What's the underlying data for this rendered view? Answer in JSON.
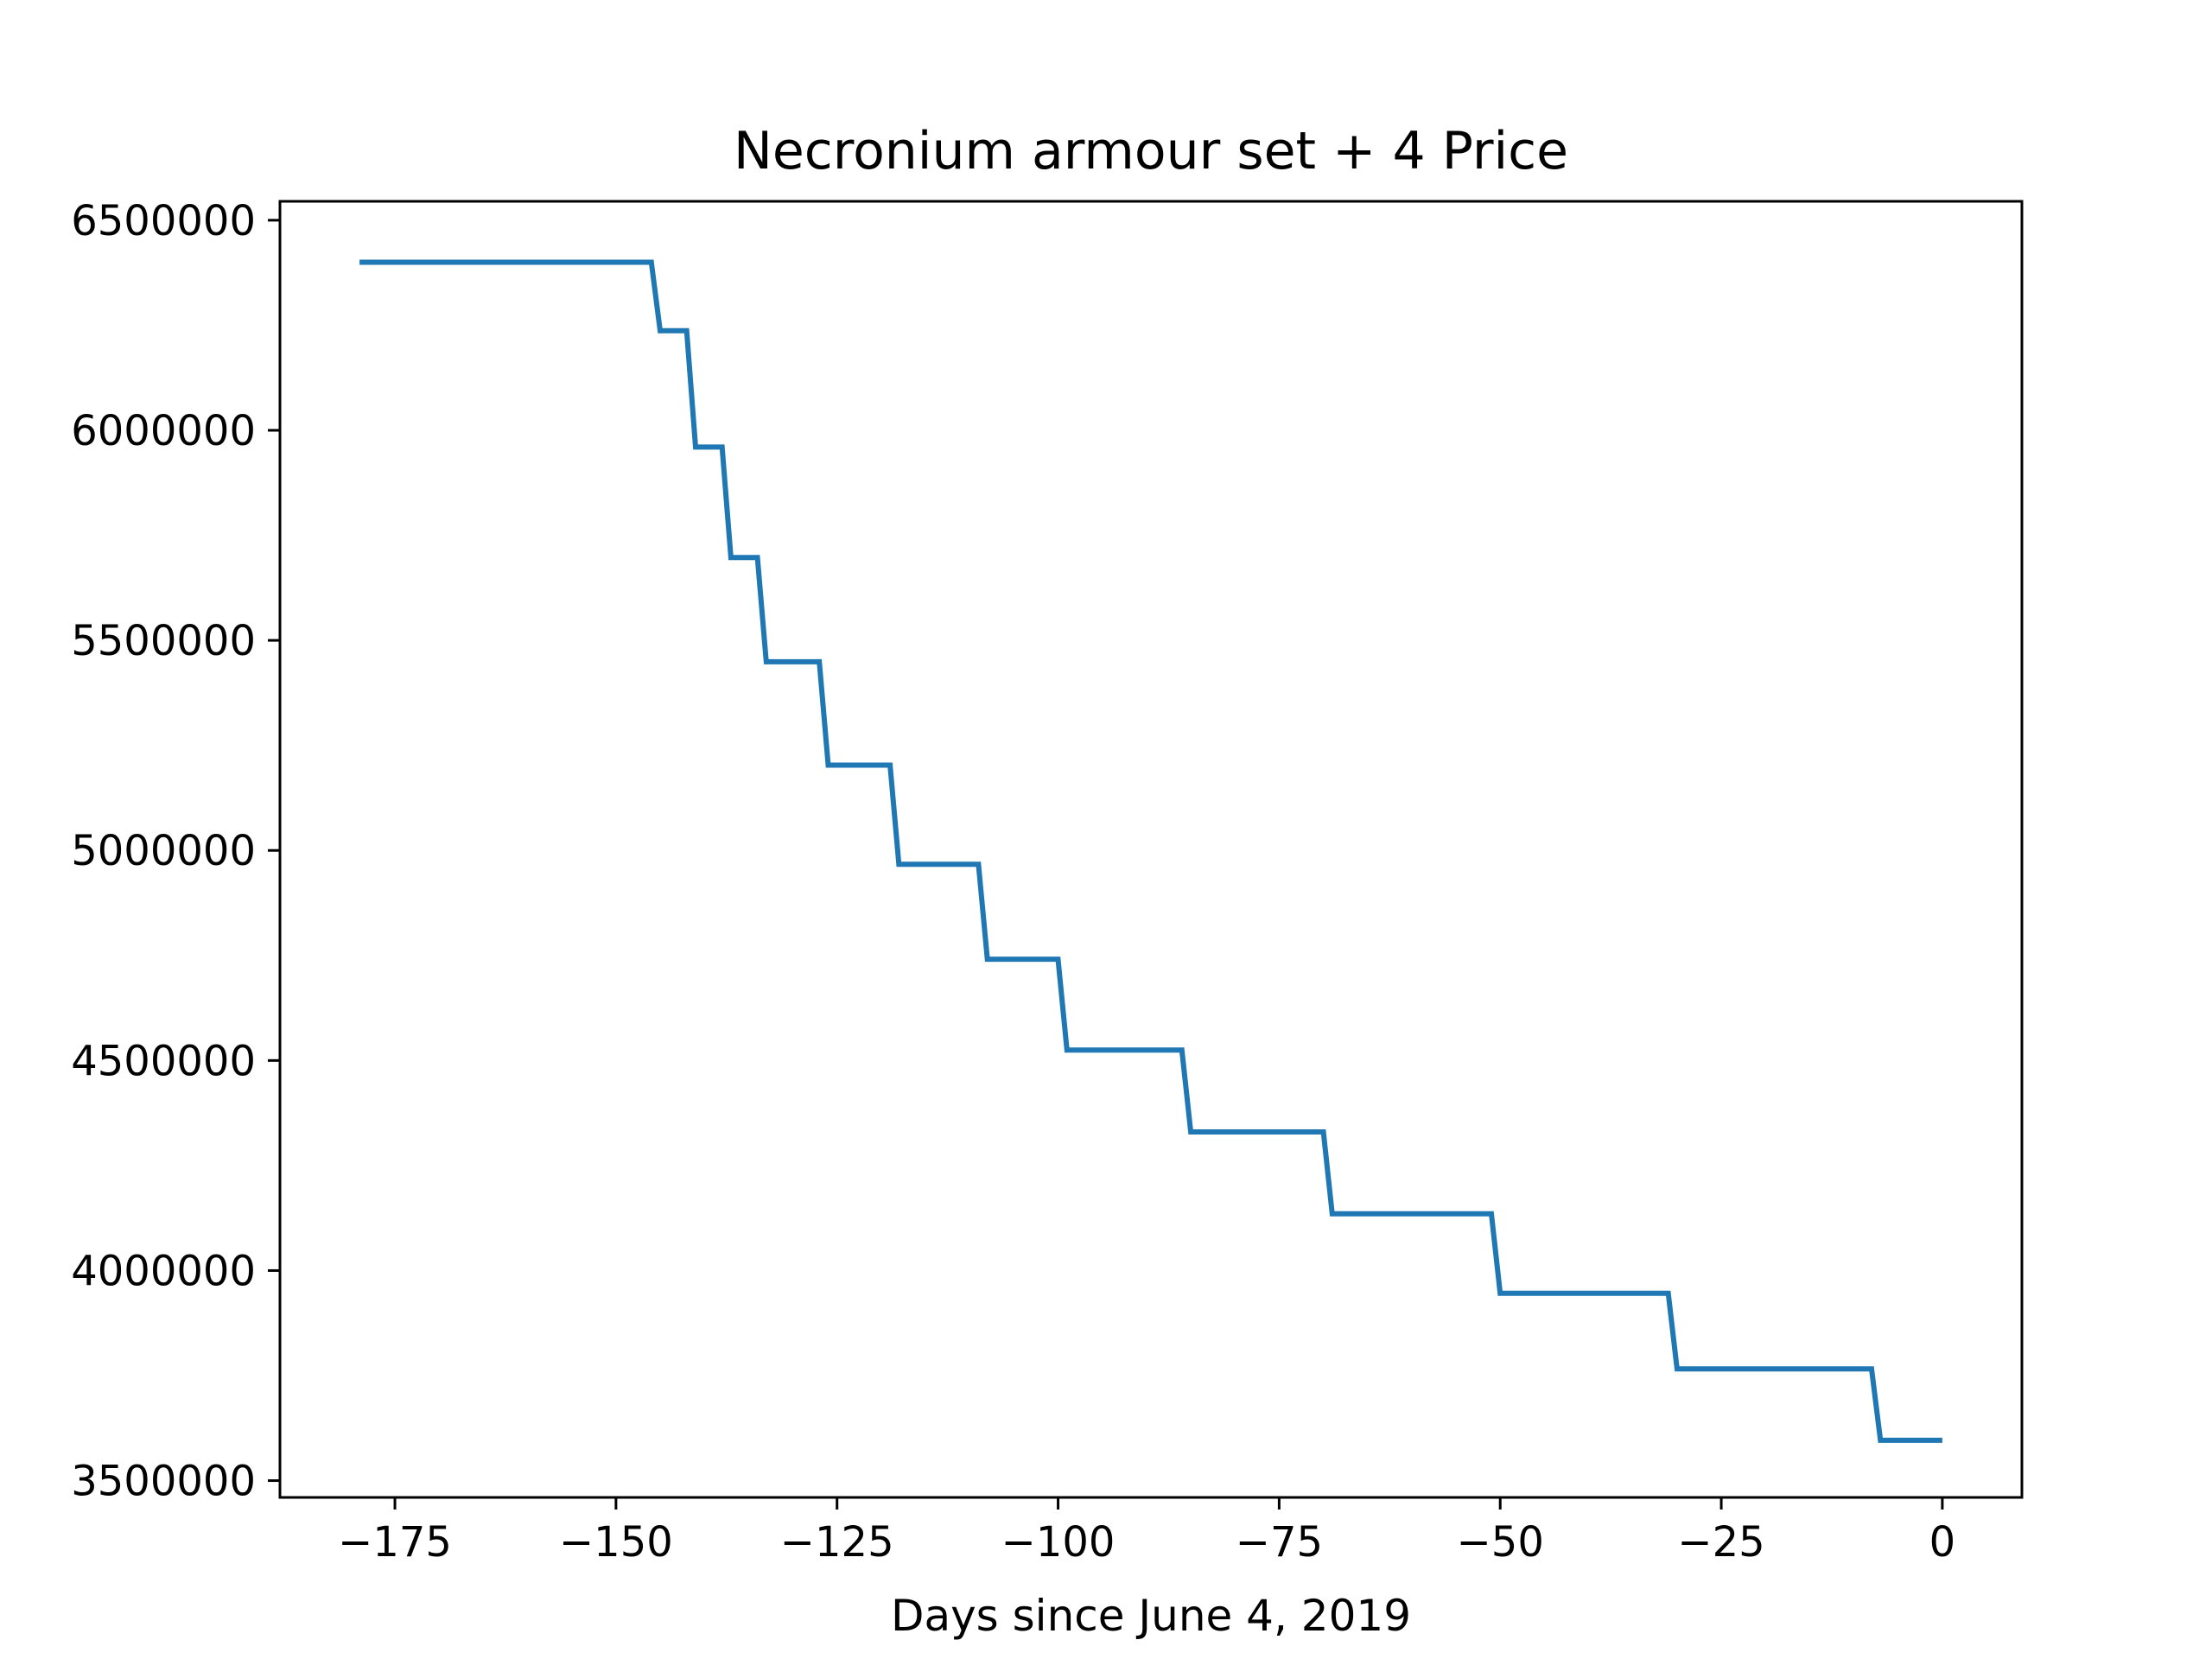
{
  "chart_data": {
    "type": "line",
    "title": "Necronium armour set + 4 Price",
    "xlabel": "Days since June 4, 2019",
    "ylabel": "",
    "xlim": [
      -188,
      9
    ],
    "ylim": [
      3460000,
      6545000
    ],
    "xticks": [
      -175,
      -150,
      -125,
      -100,
      -75,
      -50,
      -25,
      0
    ],
    "yticks": [
      3500000,
      4000000,
      4500000,
      5000000,
      5500000,
      6000000,
      6500000
    ],
    "grid": false,
    "line_color": "#1f77b4",
    "series": [
      {
        "x": [
          -179,
          -146,
          -145,
          -142,
          -141,
          -138,
          -137,
          -134,
          -133,
          -127,
          -126,
          -119,
          -118,
          -109,
          -108,
          -100,
          -99,
          -86,
          -85,
          -70,
          -69,
          -51,
          -50,
          -31,
          -30,
          -8,
          -7,
          0
        ],
        "y": [
          6400000,
          6400000,
          6237000,
          6237000,
          5960000,
          5960000,
          5697000,
          5697000,
          5449000,
          5449000,
          5203000,
          5203000,
          4967000,
          4967000,
          4741000,
          4741000,
          4525000,
          4525000,
          4330000,
          4330000,
          4135000,
          4135000,
          3946000,
          3946000,
          3766000,
          3766000,
          3596000,
          3596000
        ]
      }
    ]
  }
}
